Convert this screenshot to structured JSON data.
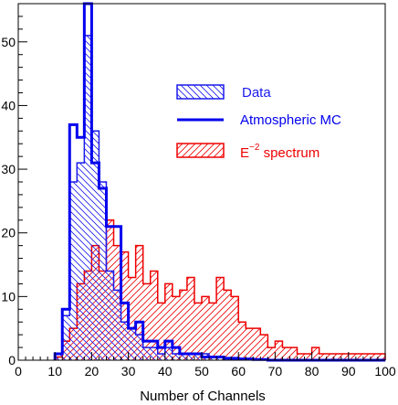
{
  "chart_data": {
    "type": "histogram",
    "xlabel": "Number of Channels",
    "ylabel": "",
    "xlim": [
      0,
      100
    ],
    "ylim": [
      0,
      56
    ],
    "bin_width": 2,
    "x_ticks": [
      0,
      10,
      20,
      30,
      40,
      50,
      60,
      70,
      80,
      90,
      100
    ],
    "y_ticks": [
      0,
      10,
      20,
      30,
      40,
      50
    ],
    "legend": {
      "placement": "top-right",
      "entries": [
        {
          "key": "data",
          "label": "Data",
          "style": "hatched-box",
          "color": "#1a1aee"
        },
        {
          "key": "mc",
          "label": "Atmospheric MC",
          "style": "line",
          "color": "#0000ee"
        },
        {
          "key": "e2",
          "label_base": "E",
          "label_sup": "−2",
          "label_rest": " spectrum",
          "style": "hatched-box",
          "color": "#ee0000"
        }
      ]
    },
    "series": [
      {
        "key": "data",
        "name": "Data",
        "color": "#1a1aee",
        "hatch": "backslash",
        "bin_edges_start": 10,
        "values": [
          1,
          7,
          28,
          31,
          51,
          36,
          28,
          14,
          11,
          6,
          5,
          4,
          2,
          2,
          1,
          2,
          1,
          1,
          1,
          1,
          1,
          0.5,
          0.5,
          0.3,
          0.2,
          0.2,
          0.1,
          0.1,
          0.1,
          0.1,
          0,
          0,
          0,
          0,
          0,
          0,
          0,
          0,
          0,
          0,
          0,
          0,
          0,
          0,
          0
        ]
      },
      {
        "key": "mc",
        "name": "Atmospheric MC",
        "color": "#0000ee",
        "hatch": "none",
        "bin_edges_start": 10,
        "values": [
          1,
          8,
          37,
          35,
          56,
          31,
          27,
          21,
          21,
          9,
          5,
          6,
          3,
          3,
          2,
          3,
          2,
          1,
          1,
          1,
          0.5,
          0.5,
          0.5,
          0.3,
          0.3,
          0.2,
          0.2,
          0.1,
          0.1,
          0,
          0,
          0,
          0,
          0,
          0,
          0,
          0,
          0,
          0,
          0,
          0,
          0,
          0,
          0,
          0
        ]
      },
      {
        "key": "e2",
        "name": "E−2 spectrum",
        "color": "#ee0000",
        "hatch": "slash",
        "bin_edges_start": 10,
        "values": [
          0.5,
          3,
          5,
          12,
          14,
          18,
          14,
          22,
          18,
          17,
          13,
          18,
          12,
          14,
          9,
          12,
          10,
          11,
          13,
          9,
          10,
          9,
          13,
          11,
          10,
          6,
          5,
          5,
          4,
          2,
          3,
          2,
          2,
          1,
          1,
          2,
          1,
          1,
          1,
          1,
          1,
          1,
          1,
          1,
          1
        ]
      }
    ]
  }
}
